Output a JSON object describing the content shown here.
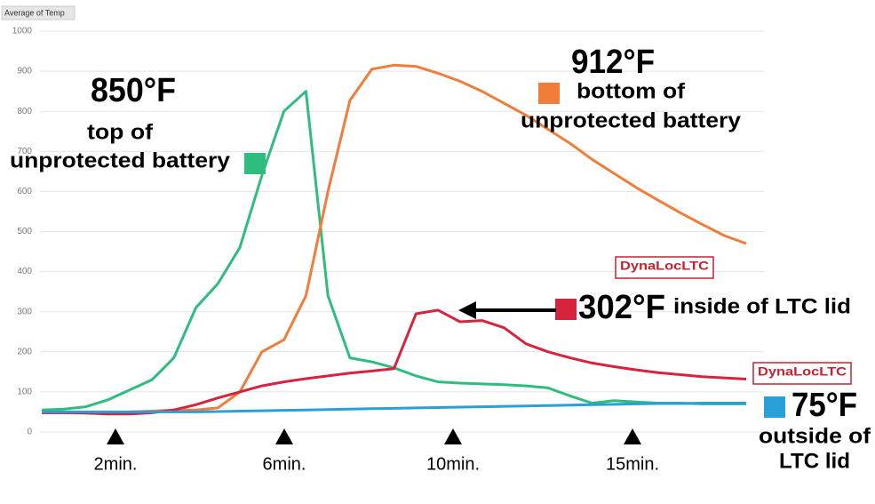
{
  "chart_data": {
    "type": "line",
    "title": "Average of Temp",
    "ylim": [
      0,
      1000
    ],
    "yticks": [
      0,
      100,
      200,
      300,
      400,
      500,
      600,
      700,
      800,
      900,
      1000
    ],
    "grid": true,
    "series": [
      {
        "color": "#2ebd7e",
        "values": [
          55,
          57,
          63,
          80,
          105,
          130,
          185,
          310,
          370,
          460,
          640,
          800,
          850,
          340,
          185,
          175,
          160,
          140,
          125,
          122,
          120,
          118,
          115,
          110,
          90,
          72,
          78,
          75,
          72,
          72,
          70,
          70,
          70
        ]
      },
      {
        "color": "#f07d3a",
        "values": [
          48,
          48,
          48,
          48,
          50,
          52,
          55,
          55,
          60,
          100,
          200,
          230,
          340,
          600,
          827,
          905,
          915,
          912,
          895,
          875,
          850,
          820,
          790,
          755,
          720,
          680,
          645,
          610,
          578,
          547,
          518,
          490,
          470
        ]
      },
      {
        "color": "#d8233f",
        "values": [
          48,
          48,
          47,
          45,
          45,
          48,
          55,
          68,
          85,
          100,
          115,
          125,
          133,
          140,
          147,
          152,
          158,
          295,
          304,
          275,
          278,
          260,
          220,
          200,
          185,
          172,
          163,
          155,
          148,
          143,
          138,
          135,
          132
        ]
      },
      {
        "color": "#2a9fd8",
        "values": [
          50,
          50,
          50,
          50,
          50,
          50,
          50,
          50,
          51,
          52,
          53,
          54,
          55,
          56,
          57,
          58,
          59,
          60,
          61,
          62,
          63,
          64,
          65,
          66,
          67,
          68,
          69,
          70,
          71,
          71,
          72,
          72,
          72
        ]
      }
    ],
    "time_markers": [
      "2min.",
      "6min.",
      "10min.",
      "15min."
    ],
    "annotations": [
      "850°F",
      "top of",
      "unprotected battery",
      "912°F",
      "bottom of",
      "unprotected battery",
      "302°F",
      "inside of LTC lid",
      "75°F",
      "outside of",
      "LTC lid"
    ],
    "logos": [
      "DynaLocLTC",
      "DynaLocLTC"
    ]
  }
}
